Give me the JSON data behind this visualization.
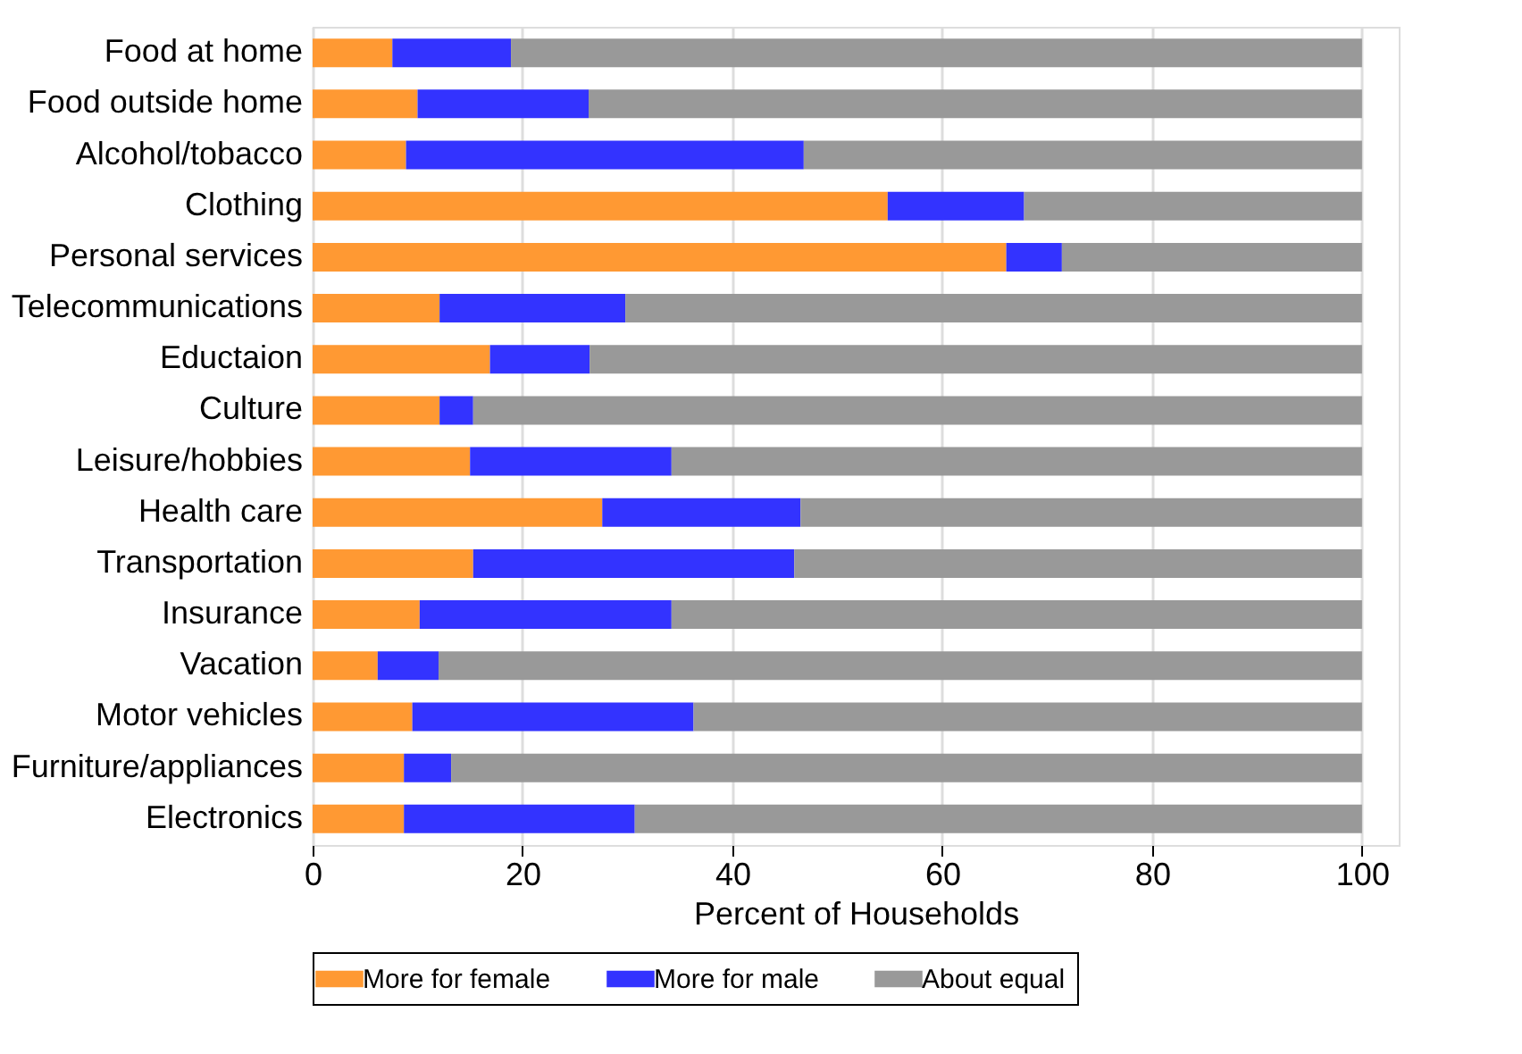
{
  "chart_data": {
    "type": "bar",
    "orientation": "horizontal",
    "stacked": true,
    "categories": [
      "Food at home",
      "Food outside home",
      "Alcohol/tobacco",
      "Clothing",
      "Personal services",
      "Telecommunications",
      "Eductaion",
      "Culture",
      "Leisure/hobbies",
      "Health care",
      "Transportation",
      "Insurance",
      "Vacation",
      "Motor vehicles",
      "Furniture/appliances",
      "Electronics"
    ],
    "series": [
      {
        "name": "More for female",
        "color": "#ff9933",
        "values": [
          7.6,
          10.0,
          8.9,
          54.8,
          66.1,
          12.1,
          16.9,
          12.1,
          15.0,
          27.6,
          15.3,
          10.2,
          6.2,
          9.5,
          8.7,
          8.7
        ]
      },
      {
        "name": "More for male",
        "color": "#3333ff",
        "values": [
          11.3,
          16.3,
          37.9,
          13.0,
          5.3,
          17.7,
          9.5,
          3.2,
          19.2,
          18.9,
          30.6,
          24.0,
          5.8,
          26.8,
          4.5,
          22.0
        ]
      },
      {
        "name": "About equal",
        "color": "#999999",
        "values": [
          81.1,
          73.7,
          53.2,
          32.2,
          28.6,
          70.2,
          73.6,
          84.7,
          65.8,
          53.5,
          54.1,
          65.8,
          88.0,
          63.7,
          86.8,
          69.3
        ]
      }
    ],
    "xlabel": "Percent of Households",
    "xlim": [
      0,
      103.5
    ],
    "xticks": [
      0,
      20,
      40,
      60,
      80,
      100
    ],
    "grid": "x",
    "legend": "bottom"
  }
}
